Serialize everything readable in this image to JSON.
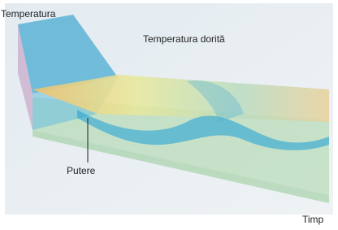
{
  "labels": {
    "y_axis": "Temperatura",
    "target": "Temperatura dorită",
    "power": "Putere",
    "x_axis": "Timp"
  }
}
